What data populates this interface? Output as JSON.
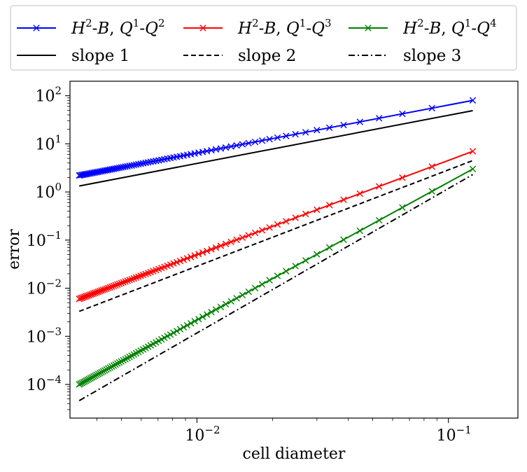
{
  "chart_data": {
    "type": "line",
    "title": "",
    "xlabel": "cell diameter",
    "ylabel": "error",
    "xscale": "log",
    "yscale": "log",
    "xlim": [
      0.003125,
      0.189
    ],
    "ylim": [
      2e-05,
      200
    ],
    "grid": false,
    "legend_location": "top (outside axes)",
    "x_ticks": [
      {
        "value": 0.01,
        "base": "10",
        "exp": "−2"
      },
      {
        "value": 0.1,
        "base": "10",
        "exp": "−1"
      }
    ],
    "y_ticks": [
      {
        "value": 0.0001,
        "base": "10",
        "exp": "−4"
      },
      {
        "value": 0.001,
        "base": "10",
        "exp": "−3"
      },
      {
        "value": 0.01,
        "base": "10",
        "exp": "−2"
      },
      {
        "value": 0.1,
        "base": "10",
        "exp": "−1"
      },
      {
        "value": 1,
        "base": "10",
        "exp": "0"
      },
      {
        "value": 10,
        "base": "10",
        "exp": "1"
      },
      {
        "value": 100,
        "base": "10",
        "exp": "2"
      }
    ],
    "series": [
      {
        "name": "H2-B, Q1-Q2",
        "color": "#0000ff",
        "marker": "x",
        "dash": "solid",
        "label": {
          "a": "H",
          "a_sup": "2",
          "b": "-",
          "c": "B",
          "d": ", ",
          "e": "Q",
          "e_sup": "1",
          "f": "-",
          "g": "Q",
          "g_sup": "2"
        },
        "x_start": 0.0034,
        "x_end": 0.125,
        "n_points": 80,
        "y_start": 2.2,
        "y_end": 80
      },
      {
        "name": "H2-B, Q1-Q3",
        "color": "#ff0000",
        "marker": "x",
        "dash": "solid",
        "label": {
          "a": "H",
          "a_sup": "2",
          "b": "-",
          "c": "B",
          "d": ", ",
          "e": "Q",
          "e_sup": "1",
          "f": "-",
          "g": "Q",
          "g_sup": "3"
        },
        "x_start": 0.0034,
        "x_end": 0.125,
        "n_points": 80,
        "y_start": 0.006,
        "y_end": 7.0
      },
      {
        "name": "H2-B, Q1-Q4",
        "color": "#008000",
        "marker": "x",
        "dash": "solid",
        "label": {
          "a": "H",
          "a_sup": "2",
          "b": "-",
          "c": "B",
          "d": ", ",
          "e": "Q",
          "e_sup": "1",
          "f": "-",
          "g": "Q",
          "g_sup": "4"
        },
        "x_start": 0.0034,
        "x_end": 0.125,
        "n_points": 80,
        "y_start": 0.0001,
        "y_end": 3.0
      },
      {
        "name": "slope 1",
        "color": "#000000",
        "marker": "none",
        "dash": "solid",
        "label_text": "slope 1",
        "x_start": 0.0034,
        "x_end": 0.125,
        "y_start": 1.33,
        "y_end": 49
      },
      {
        "name": "slope 2",
        "color": "#000000",
        "marker": "none",
        "dash": "dashed",
        "label_text": "slope 2",
        "x_start": 0.0034,
        "x_end": 0.125,
        "y_start": 0.0033,
        "y_end": 4.5
      },
      {
        "name": "slope 3",
        "color": "#000000",
        "marker": "none",
        "dash": "dashdot",
        "label_text": "slope 3",
        "x_start": 0.0034,
        "x_end": 0.125,
        "y_start": 4.6e-05,
        "y_end": 2.3
      }
    ]
  }
}
